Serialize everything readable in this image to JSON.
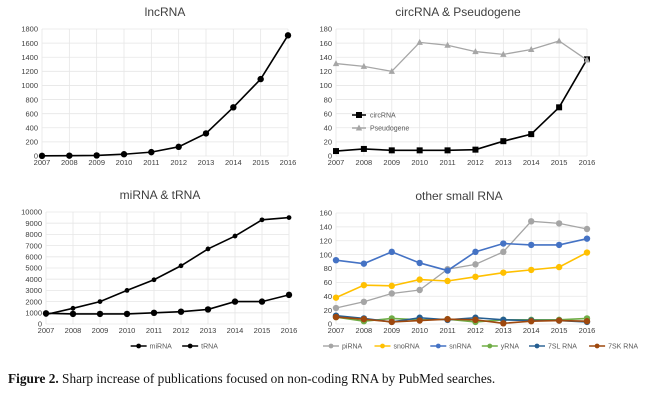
{
  "figure": {
    "caption_label": "Figure 2.",
    "caption_text": " Sharp increase of publications focused on non-coding RNA by PubMed searches."
  },
  "colors": {
    "grid": "#e6e6e6",
    "axis": "#d9d9d9",
    "black": "#000000",
    "gray": "#a6a6a6",
    "piRNA": "#a5a5a5",
    "snoRNA": "#ffc000",
    "snRNA": "#4472c4",
    "yRNA": "#70ad47",
    "7SL RNA": "#255e91",
    "7SK RNA": "#9e480e"
  },
  "chart_data": [
    {
      "id": "lncrna",
      "type": "line",
      "title": "lncRNA",
      "categories": [
        "2007",
        "2008",
        "2009",
        "2010",
        "2011",
        "2012",
        "2013",
        "2014",
        "2015",
        "2016"
      ],
      "ylim": [
        0,
        1800
      ],
      "yticks": [
        0,
        200,
        400,
        600,
        800,
        1000,
        1200,
        1400,
        1600,
        1800
      ],
      "grid": true,
      "legend": "none",
      "series": [
        {
          "name": "lncRNA",
          "color": "#000000",
          "marker": "circle",
          "values": [
            2,
            5,
            8,
            25,
            55,
            130,
            320,
            690,
            1090,
            1710
          ]
        }
      ]
    },
    {
      "id": "circ",
      "type": "line",
      "title": "circRNA & Pseudogene",
      "categories": [
        "2007",
        "2008",
        "2009",
        "2010",
        "2011",
        "2012",
        "2013",
        "2014",
        "2015",
        "2016"
      ],
      "ylim": [
        0,
        180
      ],
      "yticks": [
        0,
        20,
        40,
        60,
        80,
        100,
        120,
        140,
        160,
        180
      ],
      "grid": true,
      "legend": "left-middle",
      "series": [
        {
          "name": "circRNA",
          "color": "#000000",
          "marker": "square",
          "values": [
            7,
            10,
            8,
            8,
            8,
            9,
            21,
            31,
            69,
            137
          ]
        },
        {
          "name": "Pseudogene",
          "color": "#a6a6a6",
          "marker": "triangle",
          "values": [
            131,
            127,
            120,
            161,
            157,
            148,
            144,
            151,
            163,
            136
          ]
        }
      ]
    },
    {
      "id": "mirna",
      "type": "line",
      "title": "miRNA & tRNA",
      "categories": [
        "2007",
        "2008",
        "2009",
        "2010",
        "2011",
        "2012",
        "2013",
        "2014",
        "2015",
        "2016"
      ],
      "ylim": [
        0,
        10000
      ],
      "yticks": [
        0,
        1000,
        2000,
        3000,
        4000,
        5000,
        6000,
        7000,
        8000,
        9000,
        10000
      ],
      "grid": true,
      "legend": "bottom",
      "series": [
        {
          "name": "miRNA",
          "color": "#000000",
          "marker": "small",
          "values": [
            850,
            1400,
            2000,
            3000,
            3950,
            5200,
            6700,
            7850,
            9300,
            9500
          ]
        },
        {
          "name": "tRNA",
          "color": "#000000",
          "marker": "circle",
          "values": [
            950,
            900,
            900,
            900,
            1000,
            1100,
            1300,
            2000,
            2000,
            2600
          ]
        }
      ]
    },
    {
      "id": "smallrna",
      "type": "line",
      "title": "other small RNA",
      "categories": [
        "2007",
        "2008",
        "2009",
        "2010",
        "2011",
        "2012",
        "2013",
        "2014",
        "2015",
        "2016"
      ],
      "ylim": [
        0,
        160
      ],
      "yticks": [
        0,
        20,
        40,
        60,
        80,
        100,
        120,
        140,
        160
      ],
      "grid": true,
      "legend": "bottom",
      "series": [
        {
          "name": "piRNA",
          "color": "#a5a5a5",
          "marker": "circle",
          "values": [
            23,
            32,
            44,
            49,
            79,
            86,
            104,
            148,
            145,
            137
          ]
        },
        {
          "name": "snoRNA",
          "color": "#ffc000",
          "marker": "circle",
          "values": [
            38,
            56,
            55,
            64,
            62,
            68,
            74,
            78,
            82,
            103
          ]
        },
        {
          "name": "snRNA",
          "color": "#4472c4",
          "marker": "circle",
          "values": [
            92,
            87,
            104,
            88,
            77,
            104,
            116,
            114,
            114,
            123
          ]
        },
        {
          "name": "yRNA",
          "color": "#70ad47",
          "marker": "circle",
          "values": [
            10,
            4,
            8,
            6,
            7,
            3,
            6,
            6,
            6,
            8
          ]
        },
        {
          "name": "7SL RNA",
          "color": "#255e91",
          "marker": "circle",
          "values": [
            12,
            8,
            3,
            9,
            6,
            9,
            6,
            5,
            5,
            3
          ]
        },
        {
          "name": "7SK RNA",
          "color": "#9e480e",
          "marker": "circle",
          "values": [
            10,
            7,
            3,
            5,
            7,
            6,
            1,
            4,
            5,
            4
          ]
        }
      ]
    }
  ]
}
